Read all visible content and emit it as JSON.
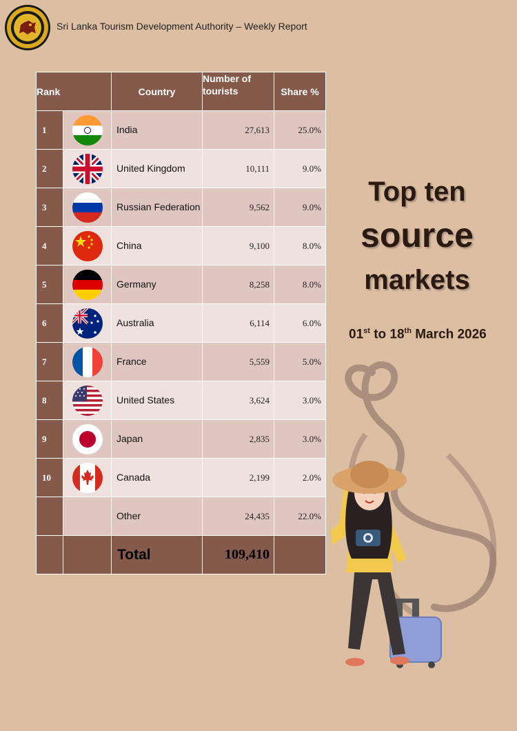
{
  "header": {
    "title": "Sri Lanka Tourism Development Authority – Weekly Report"
  },
  "table": {
    "headers": {
      "rank": "Rank",
      "country": "Country",
      "tourists": "Number of tourists",
      "share": "Share %"
    },
    "rows": [
      {
        "rank": "1",
        "flag": "india-flag",
        "country": "India",
        "tourists": "27,613",
        "share": "25.0%"
      },
      {
        "rank": "2",
        "flag": "united-kingdom-flag",
        "country": "United Kingdom",
        "tourists": "10,111",
        "share": "9.0%"
      },
      {
        "rank": "3",
        "flag": "russia-flag",
        "country": "Russian Federation",
        "tourists": "9,562",
        "share": "9.0%"
      },
      {
        "rank": "4",
        "flag": "china-flag",
        "country": "China",
        "tourists": "9,100",
        "share": "8.0%"
      },
      {
        "rank": "5",
        "flag": "germany-flag",
        "country": "Germany",
        "tourists": "8,258",
        "share": "8.0%"
      },
      {
        "rank": "6",
        "flag": "australia-flag",
        "country": "Australia",
        "tourists": "6,114",
        "share": "6.0%"
      },
      {
        "rank": "7",
        "flag": "france-flag",
        "country": "France",
        "tourists": "5,559",
        "share": "5.0%"
      },
      {
        "rank": "8",
        "flag": "united-states-flag",
        "country": "United States",
        "tourists": "3,624",
        "share": "3.0%"
      },
      {
        "rank": "9",
        "flag": "japan-flag",
        "country": "Japan",
        "tourists": "2,835",
        "share": "3.0%"
      },
      {
        "rank": "10",
        "flag": "canada-flag",
        "country": "Canada",
        "tourists": "2,199",
        "share": "2.0%"
      }
    ],
    "other": {
      "country": "Other",
      "tourists": "24,435",
      "share": "22.0%"
    },
    "total": {
      "label": "Total",
      "tourists": "109,410"
    }
  },
  "side": {
    "title_line1": "Top ten",
    "title_line2": "source",
    "title_line3": "markets",
    "period": {
      "d1": "01",
      "s1": "st",
      "mid": " to 18",
      "s2": "th",
      "rest": " March 2026"
    }
  },
  "colors": {
    "background": "#dcbfa3",
    "header_cell": "#865a4b",
    "row_odd": "#e0c6c1",
    "row_even": "#efe2de",
    "title": "#2b1a12"
  },
  "icons": {
    "logo": "sltda-emblem-icon",
    "illustration": "traveler-woman-illustration"
  }
}
